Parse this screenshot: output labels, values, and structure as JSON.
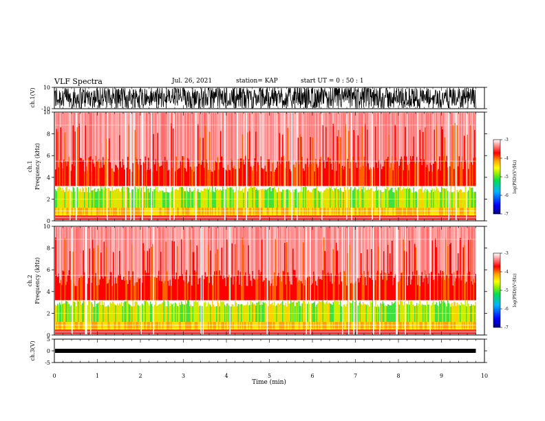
{
  "header": {
    "title": "VLF Spectra",
    "date": "Jul. 26, 2021",
    "station": "station= KAP",
    "start": "start  UT =   0 : 50 : 1"
  },
  "chart_data": [
    {
      "type": "line",
      "name": "ch1-waveform",
      "ylabel": "ch.1(V)",
      "ylim": [
        -10,
        10
      ],
      "yticks": [
        "10",
        "-10"
      ],
      "xlim": [
        0,
        10
      ],
      "description_values": "dense waveform oscillating roughly between -10 and 10 V"
    },
    {
      "type": "heatmap",
      "name": "ch1-spectrogram",
      "ylabel": "ch.1\nFrequency (kHz)",
      "ylim": [
        0,
        10
      ],
      "yticks": [
        "0",
        "2",
        "4",
        "6",
        "8",
        "10"
      ],
      "xlim": [
        0,
        9.8
      ],
      "colorbar": {
        "label": "log(PSD)(V²/Hz)",
        "range": [
          -7,
          -3
        ],
        "ticks": [
          "-3",
          "-4",
          "-5",
          "-6",
          "-7"
        ]
      }
    },
    {
      "type": "heatmap",
      "name": "ch2-spectrogram",
      "ylabel": "ch.2\nFrequency (kHz)",
      "ylim": [
        0,
        10
      ],
      "yticks": [
        "0",
        "2",
        "4",
        "6",
        "8",
        "10"
      ],
      "xlim": [
        0,
        9.8
      ],
      "colorbar": {
        "label": "log(PSD)(V²/Hz)",
        "range": [
          -7,
          -3
        ],
        "ticks": [
          "-3",
          "-4",
          "-5",
          "-6",
          "-7"
        ]
      }
    },
    {
      "type": "line",
      "name": "ch3-waveform",
      "ylabel": "ch.3(V)",
      "ylim": [
        -5,
        5
      ],
      "yticks": [
        "5",
        "0",
        "-5"
      ],
      "xlim": [
        0,
        10
      ],
      "description_values": "near-constant band around -1 V"
    }
  ],
  "xaxis": {
    "label": "Time (min)",
    "ticks": [
      "0",
      "1",
      "2",
      "3",
      "4",
      "5",
      "6",
      "7",
      "8",
      "9",
      "10"
    ]
  },
  "colors": {
    "palette": [
      "#000080",
      "#0000ff",
      "#00b4ff",
      "#00e050",
      "#a0f000",
      "#ffff00",
      "#ffa000",
      "#ff0000",
      "#ffffff"
    ]
  }
}
